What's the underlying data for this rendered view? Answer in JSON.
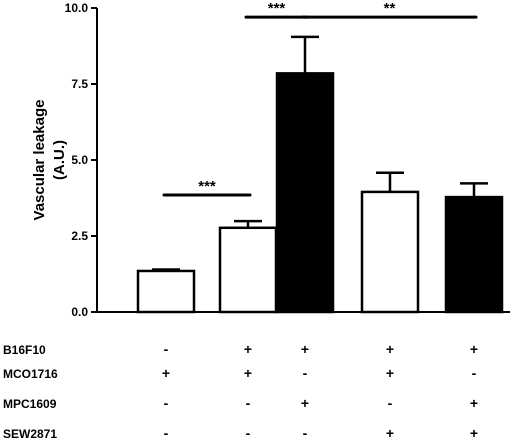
{
  "chart_data": {
    "type": "bar",
    "ylabel": "Vascular leakage (A.U.)",
    "ylabel_lines": [
      "Vascular leakage",
      "(A.U.)"
    ],
    "ylim": [
      0,
      10
    ],
    "yticks": [
      0.0,
      2.5,
      5.0,
      7.5,
      10.0
    ],
    "ytick_labels": [
      "0.0",
      "2.5",
      "5.0",
      "7.5",
      "10.0"
    ],
    "grid": false,
    "bars": [
      {
        "value": 1.35,
        "error": 0.05,
        "fill": "white"
      },
      {
        "value": 2.77,
        "error": 0.22,
        "fill": "white"
      },
      {
        "value": 7.85,
        "error": 1.2,
        "fill": "black"
      },
      {
        "value": 3.95,
        "error": 0.63,
        "fill": "white"
      },
      {
        "value": 3.78,
        "error": 0.45,
        "fill": "black"
      }
    ],
    "conditions": [
      {
        "name": "B16F10",
        "signs": [
          "-",
          "+",
          "+",
          "+",
          "+"
        ]
      },
      {
        "name": "MCO1716",
        "signs": [
          "+",
          "+",
          "-",
          "+",
          "-"
        ]
      },
      {
        "name": "MPC1609",
        "signs": [
          "-",
          "-",
          "+",
          "-",
          "+"
        ]
      },
      {
        "name": "SEW2871",
        "signs": [
          "-",
          "-",
          "-",
          "+",
          "+"
        ]
      }
    ],
    "significance": [
      {
        "from": 0,
        "to": 1,
        "label": "***",
        "y": 3.85
      },
      {
        "from": 1,
        "to": 2,
        "label": "***",
        "y": 9.7
      },
      {
        "from": 2,
        "to": 4,
        "label": "**",
        "y": 9.7
      }
    ]
  },
  "colors": {
    "fill_black": "#000000",
    "fill_white": "#ffffff",
    "stroke": "#000000"
  }
}
